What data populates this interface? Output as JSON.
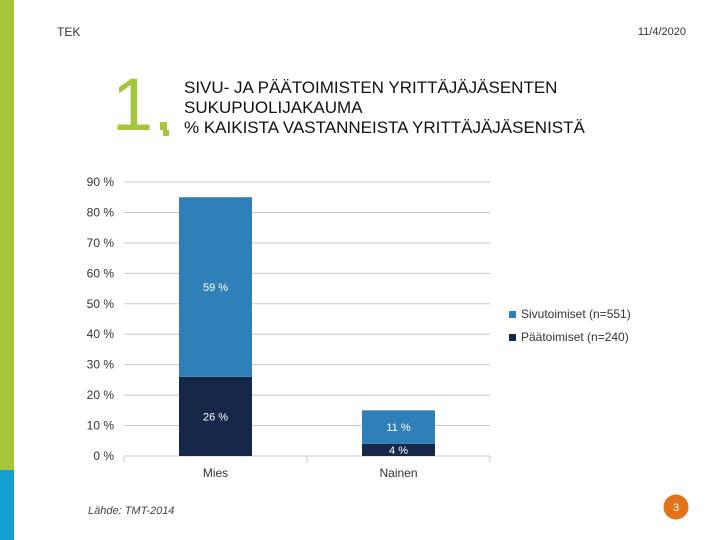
{
  "header": {
    "org": "TEK",
    "date": "11/4/2020",
    "slide_number": "1.",
    "title_lines": [
      "SIVU- JA PÄÄTOIMISTEN YRITTÄJÄJÄSENTEN",
      "SUKUPUOLIJAKAUMA",
      "% KAIKISTA VASTANNEISTA YRITTÄJÄJÄSENISTÄ"
    ]
  },
  "chart_data": {
    "type": "bar",
    "stacked": true,
    "categories": [
      "Mies",
      "Nainen"
    ],
    "series": [
      {
        "name": "Päätoimiset (n=240)",
        "values": [
          26,
          4
        ],
        "labels": [
          "26 %",
          "4 %"
        ],
        "color": "#16284a"
      },
      {
        "name": "Sivutoimiset (n=551)",
        "values": [
          59,
          11
        ],
        "labels": [
          "59 %",
          "11 %"
        ],
        "color": "#2f7fb9"
      }
    ],
    "ylim": [
      0,
      90
    ],
    "yticks": [
      "0 %",
      "10 %",
      "20 %",
      "30 %",
      "40 %",
      "50 %",
      "60 %",
      "70 %",
      "80 %",
      "90 %"
    ],
    "grid": true,
    "legend_position": "right",
    "legend_order": [
      1,
      0
    ]
  },
  "footer": {
    "source": "Lähde: TMT-2014",
    "page": "3",
    "badge_color": "#e2731b"
  }
}
